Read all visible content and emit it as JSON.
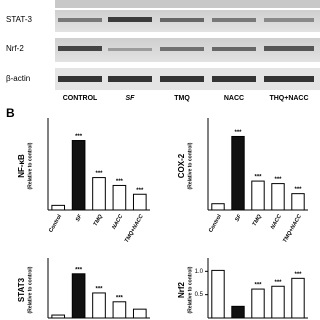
{
  "blot": {
    "proteins": [
      "STAT-3",
      "Nrf-2",
      "β-actin"
    ],
    "lanes": [
      "CONTROL",
      "SF",
      "TMQ",
      "NACC",
      "THQ+NACC"
    ]
  },
  "panel_label": "B",
  "chart_data": [
    {
      "type": "bar",
      "y_label": "NF-κB",
      "y_label_sub": "(Relative to control)",
      "categories": [
        "Control",
        "SF",
        "TMQ",
        "NACC",
        "TMQ+NACC"
      ],
      "values": [
        1,
        15,
        7,
        5.3,
        3.4
      ],
      "colors": [
        "#ffffff",
        "#111111",
        "#ffffff",
        "#ffffff",
        "#ffffff"
      ],
      "significance": [
        null,
        "***",
        "***",
        "***",
        "***"
      ],
      "ylim": [
        0,
        19
      ]
    },
    {
      "type": "bar",
      "y_label": "COX-2",
      "y_label_sub": "(Relative to control)",
      "categories": [
        "Control",
        "SF",
        "TMQ",
        "NACC",
        "TMQ+NACC"
      ],
      "values": [
        1,
        11.7,
        4.6,
        4.2,
        2.6
      ],
      "colors": [
        "#ffffff",
        "#111111",
        "#ffffff",
        "#ffffff",
        "#ffffff"
      ],
      "significance": [
        null,
        "***",
        "***",
        "***",
        "***"
      ],
      "ylim": [
        0,
        14
      ]
    },
    {
      "type": "bar",
      "y_label": "STAT3",
      "y_label_sub": "(Relative to control)",
      "categories": [
        null,
        null,
        null,
        null,
        null
      ],
      "values": [
        1,
        15,
        8.5,
        5.5,
        3
      ],
      "colors": [
        "#ffffff",
        "#111111",
        "#ffffff",
        "#ffffff",
        "#ffffff"
      ],
      "significance": [
        null,
        "***",
        "***",
        "***",
        null
      ],
      "ylim": [
        0,
        19
      ]
    },
    {
      "type": "bar",
      "y_label": "Nrf2",
      "y_label_sub": "(Relative to control)",
      "categories": [
        null,
        null,
        null,
        null,
        null
      ],
      "values": [
        1.02,
        0.25,
        0.62,
        0.68,
        0.85
      ],
      "colors": [
        "#ffffff",
        "#111111",
        "#ffffff",
        "#ffffff",
        "#ffffff"
      ],
      "significance": [
        null,
        null,
        "***",
        "***",
        "***"
      ],
      "ylim": [
        0,
        1.2
      ],
      "yticks": [
        {
          "value": 0.5,
          "label": "0.5"
        },
        {
          "value": 1,
          "label": "1.0"
        }
      ]
    }
  ]
}
